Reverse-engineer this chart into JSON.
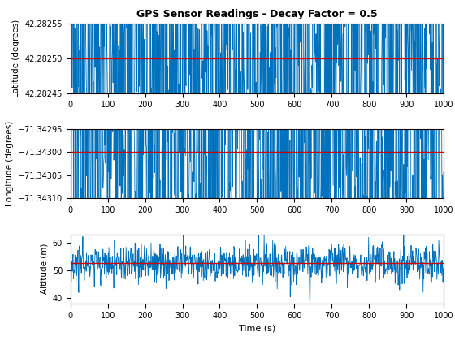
{
  "title": "GPS Sensor Readings - Decay Factor = 0.5",
  "xlabel": "Time (s)",
  "ylabel1": "Latitude (degrees)",
  "ylabel2": "Longitude (degrees)",
  "ylabel3": "Altitude (m)",
  "lat_mean": 42.2825,
  "lat_std": 0.00018,
  "lat_ylim": [
    42.28245,
    42.28255
  ],
  "lat_yticks": [
    42.28245,
    42.2825,
    42.28255
  ],
  "lon_mean": -71.343,
  "lon_std": 0.0003,
  "lon_ylim": [
    -71.3431,
    -71.34295
  ],
  "lon_yticks": [
    -71.3431,
    -71.34305,
    -71.343,
    -71.34295
  ],
  "alt_mean": 52.5,
  "alt_std": 3.5,
  "alt_ylim": [
    38,
    63
  ],
  "alt_yticks": [
    40,
    50,
    60
  ],
  "n_points": 1001,
  "x_max": 1000,
  "decay": 0.5,
  "line_color": "#0072BD",
  "ref_color": "#CC0000",
  "bg_color": "#FFFFFF",
  "seed": 42
}
